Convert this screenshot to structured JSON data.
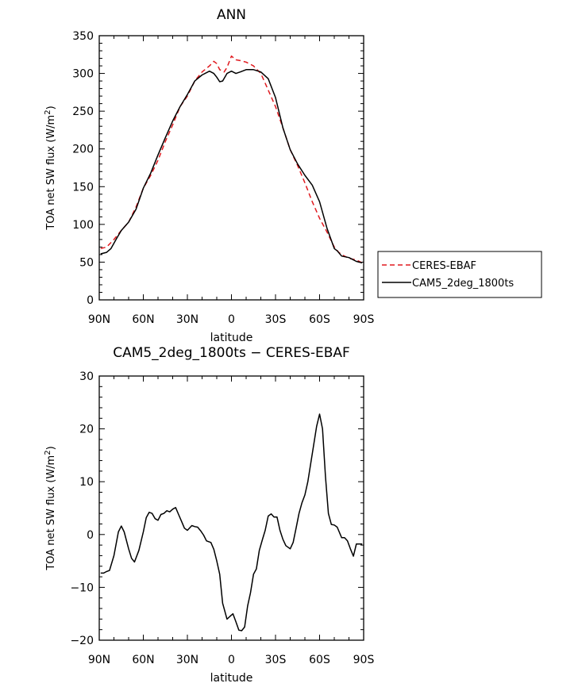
{
  "chart_data": [
    {
      "type": "line",
      "title": "ANN",
      "xlabel": "latitude",
      "ylabel": "TOA net SW flux (W/m²)",
      "xlim": [
        90,
        -90
      ],
      "ylim": [
        0,
        350
      ],
      "xticks": [
        90,
        60,
        30,
        0,
        -30,
        -60,
        -90
      ],
      "xticklabels": [
        "90N",
        "60N",
        "30N",
        "0",
        "30S",
        "60S",
        "90S"
      ],
      "yticks": [
        0,
        50,
        100,
        150,
        200,
        250,
        300,
        350
      ],
      "yticklabels": [
        "0",
        "50",
        "100",
        "150",
        "200",
        "250",
        "300",
        "350"
      ],
      "legend_position": "right",
      "series": [
        {
          "name": "CERES-EBAF",
          "color": "#e0191e",
          "dash": "dashed",
          "x": [
            89,
            85,
            80,
            75,
            70,
            65,
            60,
            55,
            50,
            45,
            40,
            35,
            30,
            25,
            20,
            15,
            12,
            10,
            8,
            5,
            3,
            0,
            -3,
            -6,
            -10,
            -15,
            -20,
            -25,
            -30,
            -35,
            -40,
            -45,
            -50,
            -55,
            -60,
            -65,
            -68,
            -70,
            -73,
            -75,
            -80,
            -85,
            -89
          ],
          "y": [
            68,
            70,
            80,
            92,
            103,
            123,
            148,
            165,
            185,
            210,
            232,
            256,
            270,
            290,
            302,
            310,
            316,
            313,
            305,
            302,
            308,
            323,
            318,
            317,
            315,
            310,
            300,
            278,
            256,
            228,
            199,
            178,
            155,
            130,
            108,
            90,
            78,
            70,
            63,
            60,
            55,
            53,
            49
          ]
        },
        {
          "name": "CAM5_2deg_1800ts",
          "color": "#000000",
          "dash": "solid",
          "x": [
            89,
            85,
            82,
            78,
            75,
            70,
            65,
            60,
            55,
            50,
            45,
            40,
            35,
            30,
            25,
            20,
            15,
            12,
            10,
            8,
            6,
            3,
            0,
            -3,
            -6,
            -10,
            -15,
            -20,
            -25,
            -30,
            -35,
            -40,
            -45,
            -50,
            -55,
            -60,
            -65,
            -70,
            -72,
            -75,
            -80,
            -85,
            -89
          ],
          "y": [
            61,
            63,
            68,
            82,
            92,
            103,
            120,
            148,
            168,
            192,
            215,
            237,
            256,
            272,
            290,
            298,
            303,
            300,
            295,
            289,
            290,
            300,
            303,
            300,
            302,
            305,
            305,
            302,
            293,
            268,
            228,
            199,
            180,
            165,
            152,
            130,
            95,
            68,
            65,
            58,
            56,
            51,
            49
          ]
        }
      ]
    },
    {
      "type": "line",
      "title": "CAM5_2deg_1800ts − CERES-EBAF",
      "xlabel": "latitude",
      "ylabel": "TOA net SW flux (W/m²)",
      "xlim": [
        90,
        -90
      ],
      "ylim": [
        -20,
        30
      ],
      "xticks": [
        90,
        60,
        30,
        0,
        -30,
        -60,
        -90
      ],
      "xticklabels": [
        "90N",
        "60N",
        "30N",
        "0",
        "30S",
        "60S",
        "90S"
      ],
      "yticks": [
        -20,
        -10,
        0,
        10,
        20,
        30
      ],
      "yticklabels": [
        "−20",
        "−10",
        "0",
        "10",
        "20",
        "30"
      ],
      "series": [
        {
          "color": "#000000",
          "x": [
            89,
            87,
            85,
            83,
            80,
            77,
            75,
            73,
            70,
            68,
            66,
            63,
            60,
            58,
            56,
            54,
            52,
            50,
            48,
            46,
            44,
            42,
            40,
            38,
            36,
            34,
            32,
            30,
            27,
            25,
            23,
            21,
            19,
            17,
            14,
            12,
            10,
            8,
            6,
            3,
            1,
            -1,
            -3,
            -5,
            -7,
            -9,
            -11,
            -13,
            -15,
            -17,
            -19,
            -21,
            -23,
            -25,
            -27,
            -29,
            -31,
            -33,
            -35,
            -37,
            -40,
            -42,
            -44,
            -46,
            -48,
            -50,
            -52,
            -54,
            -56,
            -58,
            -60,
            -62,
            -64,
            -66,
            -68,
            -70,
            -72,
            -75,
            -77,
            -79,
            -81,
            -83,
            -85,
            -87,
            -89
          ],
          "y": [
            -7.3,
            -7.3,
            -7,
            -6.8,
            -4,
            0.5,
            1.6,
            0.5,
            -2.7,
            -4.5,
            -5.2,
            -3,
            0.5,
            3.2,
            4.2,
            4,
            3,
            2.7,
            3.8,
            4,
            4.5,
            4.3,
            4.8,
            5.1,
            3.8,
            2.5,
            1.2,
            0.8,
            1.7,
            1.5,
            1.4,
            0.7,
            -0.1,
            -1.2,
            -1.5,
            -2.8,
            -5,
            -7.5,
            -13,
            -16,
            -15.5,
            -15,
            -16.5,
            -18.1,
            -18.2,
            -17.5,
            -13.5,
            -11,
            -7.5,
            -6.5,
            -3,
            -1,
            0.8,
            3.5,
            3.9,
            3.3,
            3.3,
            0.8,
            -0.9,
            -2.1,
            -2.7,
            -1.5,
            1.2,
            4,
            6,
            7.5,
            10,
            13.5,
            17,
            20.5,
            22.8,
            20,
            11,
            4,
            1.9,
            1.8,
            1.4,
            -0.6,
            -0.6,
            -1.2,
            -2.7,
            -4.1,
            -1.8,
            -1.8,
            -1.8
          ]
        }
      ]
    }
  ]
}
